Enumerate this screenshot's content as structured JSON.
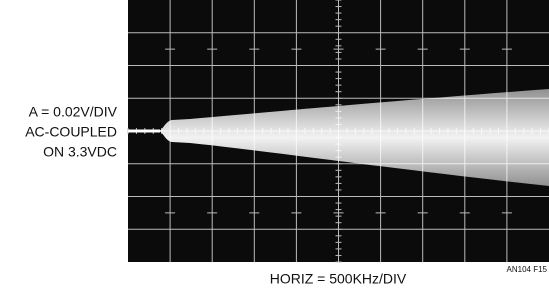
{
  "vertical_scale": {
    "lines": [
      "A = 0.02V/DIV",
      "AC-COUPLED",
      "ON 3.3VDC"
    ]
  },
  "horizontal_scale": "HORIZ = 500KHz/DIV",
  "figure_id": "AN104 F15"
}
